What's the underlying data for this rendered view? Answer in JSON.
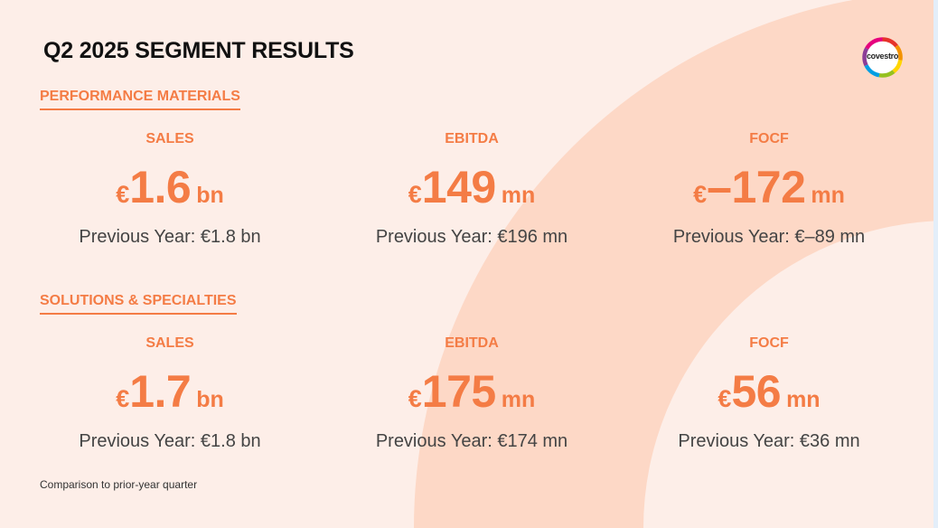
{
  "title": "Q2 2025 SEGMENT RESULTS",
  "logo": {
    "text": "covestro",
    "ring_colors": [
      "#e6332a",
      "#f39200",
      "#ffd500",
      "#95c11f",
      "#009ee3",
      "#8b3d97",
      "#e6007e"
    ]
  },
  "colors": {
    "accent": "#f47c45",
    "background": "#fdeee8",
    "arc": "#fdd8c6",
    "text": "#444444"
  },
  "sections": [
    {
      "name": "PERFORMANCE MATERIALS",
      "metrics": [
        {
          "label": "SALES",
          "currency": "€",
          "value": "1.6",
          "unit": "bn",
          "previous": "Previous Year: €1.8 bn"
        },
        {
          "label": "EBITDA",
          "currency": "€",
          "value": "149",
          "unit": "mn",
          "previous": "Previous Year: €196 mn"
        },
        {
          "label": "FOCF",
          "currency": "€",
          "value": "–172",
          "unit": "mn",
          "previous": "Previous Year: €–89 mn"
        }
      ]
    },
    {
      "name": "SOLUTIONS & SPECIALTIES",
      "metrics": [
        {
          "label": "SALES",
          "currency": "€",
          "value": "1.7",
          "unit": "bn",
          "previous": "Previous Year: €1.8 bn"
        },
        {
          "label": "EBITDA",
          "currency": "€",
          "value": "175",
          "unit": "mn",
          "previous": "Previous Year: €174 mn"
        },
        {
          "label": "FOCF",
          "currency": "€",
          "value": "56",
          "unit": "mn",
          "previous": "Previous Year: €36 mn"
        }
      ]
    }
  ],
  "footnote": "Comparison to prior-year quarter"
}
